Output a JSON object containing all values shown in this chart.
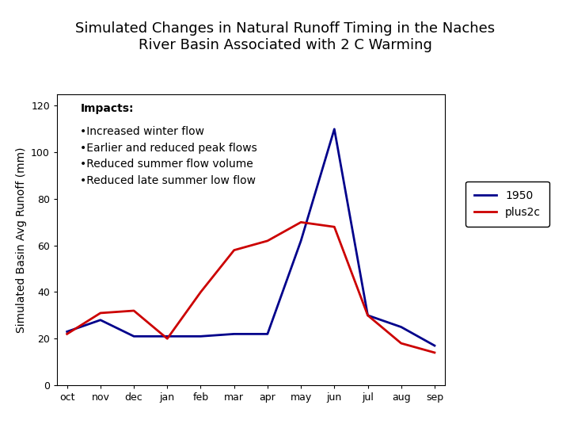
{
  "title": "Simulated Changes in Natural Runoff Timing in the Naches\nRiver Basin Associated with 2 C Warming",
  "ylabel": "Simulated Basin Avg Runoff (mm)",
  "months": [
    "oct",
    "nov",
    "dec",
    "jan",
    "feb",
    "mar",
    "apr",
    "may",
    "jun",
    "jul",
    "aug",
    "sep"
  ],
  "series_1950": [
    23,
    28,
    21,
    21,
    21,
    22,
    22,
    62,
    110,
    30,
    25,
    17
  ],
  "series_plus2c": [
    22,
    31,
    32,
    20,
    40,
    58,
    62,
    70,
    68,
    30,
    18,
    14
  ],
  "color_1950": "#00008B",
  "color_plus2c": "#CC0000",
  "ylim": [
    0,
    125
  ],
  "yticks": [
    0,
    20,
    40,
    60,
    80,
    100,
    120
  ],
  "legend_labels": [
    "1950",
    "plus2c"
  ],
  "annotation_title": "Impacts:",
  "annotation_bullets": [
    "Increased winter flow",
    "Earlier and reduced peak flows",
    "Reduced summer flow volume",
    "Reduced late summer low flow"
  ],
  "background_color": "#ffffff",
  "title_fontsize": 13,
  "axis_fontsize": 10,
  "tick_fontsize": 9,
  "legend_fontsize": 10,
  "annotation_fontsize": 10
}
